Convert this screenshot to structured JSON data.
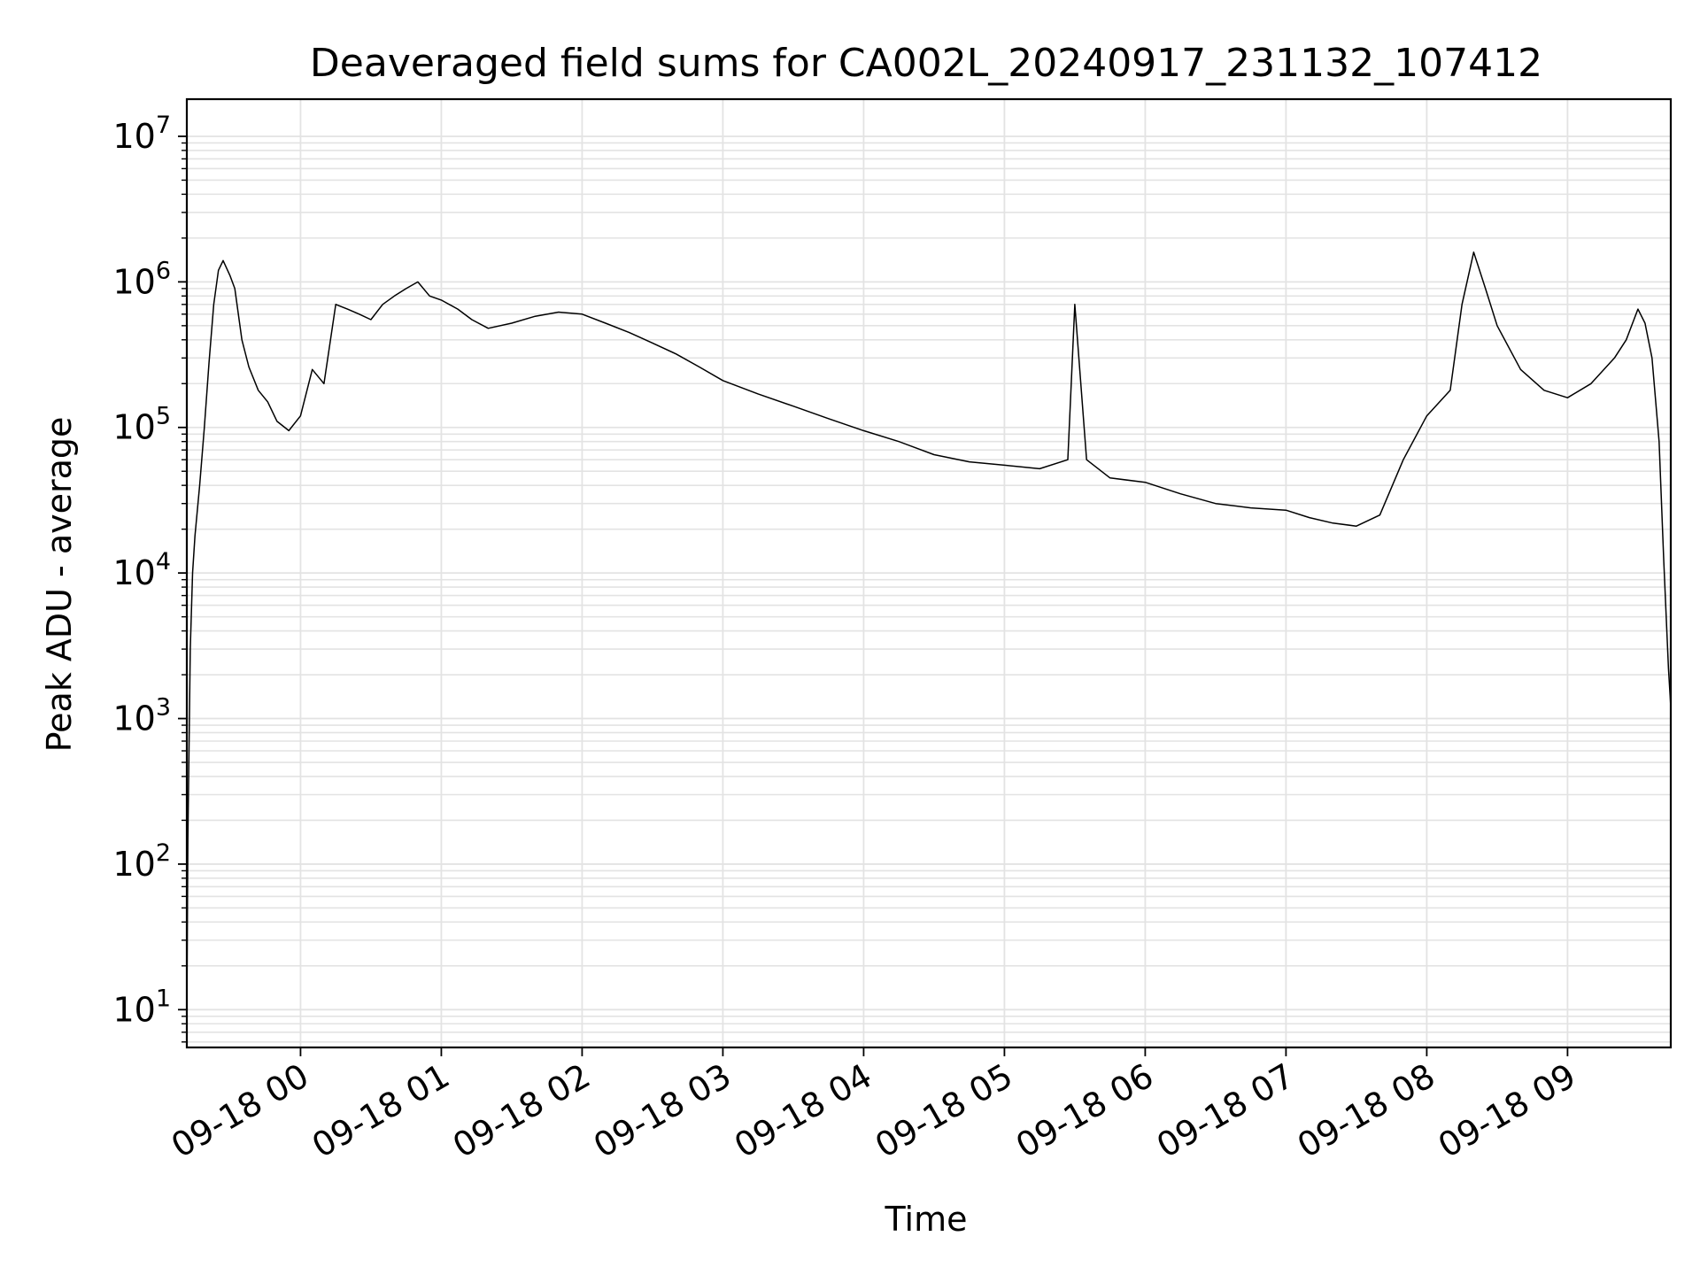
{
  "chart_data": {
    "type": "line",
    "title": "Deaveraged field sums for CA002L_20240917_231132_107412",
    "xlabel": "Time",
    "ylabel": "Peak ADU - average",
    "yscale": "log",
    "ylim": [
      5.5,
      18000000
    ],
    "xlim": [
      "2024-09-17 23:11:32",
      "2024-09-18 09:44:00"
    ],
    "x_ticks": [
      {
        "value": "2024-09-18 00:00",
        "label": "09-18 00"
      },
      {
        "value": "2024-09-18 01:00",
        "label": "09-18 01"
      },
      {
        "value": "2024-09-18 02:00",
        "label": "09-18 02"
      },
      {
        "value": "2024-09-18 03:00",
        "label": "09-18 03"
      },
      {
        "value": "2024-09-18 04:00",
        "label": "09-18 04"
      },
      {
        "value": "2024-09-18 05:00",
        "label": "09-18 05"
      },
      {
        "value": "2024-09-18 06:00",
        "label": "09-18 06"
      },
      {
        "value": "2024-09-18 07:00",
        "label": "09-18 07"
      },
      {
        "value": "2024-09-18 08:00",
        "label": "09-18 08"
      },
      {
        "value": "2024-09-18 09:00",
        "label": "09-18 09"
      }
    ],
    "y_ticks": [
      {
        "value": 10,
        "base": "10",
        "exp": "1"
      },
      {
        "value": 100,
        "base": "10",
        "exp": "2"
      },
      {
        "value": 1000,
        "base": "10",
        "exp": "3"
      },
      {
        "value": 10000,
        "base": "10",
        "exp": "4"
      },
      {
        "value": 100000,
        "base": "10",
        "exp": "5"
      },
      {
        "value": 1000000,
        "base": "10",
        "exp": "6"
      },
      {
        "value": 10000000,
        "base": "10",
        "exp": "7"
      }
    ],
    "grid": true,
    "line_color": "#000000",
    "grid_color": "#e3e3e3",
    "series": [
      {
        "x": [
          "2024-09-17 23:11:32",
          "2024-09-17 23:12:00",
          "2024-09-17 23:13:00",
          "2024-09-17 23:14:00",
          "2024-09-17 23:15:00",
          "2024-09-17 23:17:00",
          "2024-09-17 23:19:00",
          "2024-09-17 23:21:00",
          "2024-09-17 23:23:00",
          "2024-09-17 23:25:00",
          "2024-09-17 23:27:00",
          "2024-09-17 23:30:00",
          "2024-09-17 23:32:00",
          "2024-09-17 23:35:00",
          "2024-09-17 23:38:00",
          "2024-09-17 23:42:00",
          "2024-09-17 23:46:00",
          "2024-09-17 23:50:00",
          "2024-09-17 23:55:00",
          "2024-09-18 00:00:00",
          "2024-09-18 00:05:00",
          "2024-09-18 00:10:00",
          "2024-09-18 00:15:00",
          "2024-09-18 00:20:00",
          "2024-09-18 00:25:00",
          "2024-09-18 00:30:00",
          "2024-09-18 00:35:00",
          "2024-09-18 00:40:00",
          "2024-09-18 00:45:00",
          "2024-09-18 00:50:00",
          "2024-09-18 00:55:00",
          "2024-09-18 01:00:00",
          "2024-09-18 01:07:00",
          "2024-09-18 01:13:00",
          "2024-09-18 01:20:00",
          "2024-09-18 01:30:00",
          "2024-09-18 01:40:00",
          "2024-09-18 01:50:00",
          "2024-09-18 02:00:00",
          "2024-09-18 02:10:00",
          "2024-09-18 02:20:00",
          "2024-09-18 02:30:00",
          "2024-09-18 02:40:00",
          "2024-09-18 02:50:00",
          "2024-09-18 03:00:00",
          "2024-09-18 03:15:00",
          "2024-09-18 03:30:00",
          "2024-09-18 03:45:00",
          "2024-09-18 04:00:00",
          "2024-09-18 04:15:00",
          "2024-09-18 04:30:00",
          "2024-09-18 04:45:00",
          "2024-09-18 05:00:00",
          "2024-09-18 05:15:00",
          "2024-09-18 05:27:00",
          "2024-09-18 05:30:00",
          "2024-09-18 05:35:00",
          "2024-09-18 05:45:00",
          "2024-09-18 06:00:00",
          "2024-09-18 06:15:00",
          "2024-09-18 06:30:00",
          "2024-09-18 06:45:00",
          "2024-09-18 07:00:00",
          "2024-09-18 07:10:00",
          "2024-09-18 07:20:00",
          "2024-09-18 07:30:00",
          "2024-09-18 07:40:00",
          "2024-09-18 07:50:00",
          "2024-09-18 08:00:00",
          "2024-09-18 08:10:00",
          "2024-09-18 08:15:00",
          "2024-09-18 08:20:00",
          "2024-09-18 08:25:00",
          "2024-09-18 08:30:00",
          "2024-09-18 08:40:00",
          "2024-09-18 08:50:00",
          "2024-09-18 09:00:00",
          "2024-09-18 09:10:00",
          "2024-09-18 09:20:00",
          "2024-09-18 09:25:00",
          "2024-09-18 09:30:00",
          "2024-09-18 09:33:00",
          "2024-09-18 09:36:00",
          "2024-09-18 09:39:00",
          "2024-09-18 09:41:00",
          "2024-09-18 09:43:00",
          "2024-09-18 09:44:00"
        ],
        "y": [
          10,
          150,
          3000,
          10000,
          18000,
          40000,
          100000,
          280000,
          700000,
          1200000,
          1400000,
          1100000,
          900000,
          400000,
          260000,
          180000,
          150000,
          110000,
          95000,
          120000,
          250000,
          200000,
          700000,
          650000,
          600000,
          550000,
          700000,
          800000,
          900000,
          1000000,
          800000,
          750000,
          650000,
          550000,
          480000,
          520000,
          580000,
          620000,
          600000,
          520000,
          450000,
          380000,
          320000,
          260000,
          210000,
          170000,
          140000,
          115000,
          95000,
          80000,
          65000,
          58000,
          55000,
          52000,
          60000,
          700000,
          60000,
          45000,
          42000,
          35000,
          30000,
          28000,
          27000,
          24000,
          22000,
          21000,
          25000,
          60000,
          120000,
          180000,
          700000,
          1600000,
          900000,
          500000,
          250000,
          180000,
          160000,
          200000,
          300000,
          400000,
          650000,
          520000,
          300000,
          80000,
          12000,
          2200,
          1200
        ]
      }
    ]
  }
}
